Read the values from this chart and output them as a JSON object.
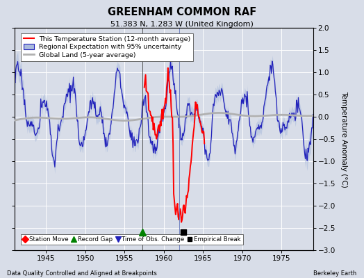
{
  "title": "GREENHAM COMMON RAF",
  "subtitle": "51.383 N, 1.283 W (United Kingdom)",
  "ylabel": "Temperature Anomaly (°C)",
  "xlabel_footer": "Data Quality Controlled and Aligned at Breakpoints",
  "footer_right": "Berkeley Earth",
  "year_start": 1941,
  "year_end": 1979,
  "ylim": [
    -3,
    2
  ],
  "yticks": [
    -3,
    -2.5,
    -2,
    -1.5,
    -1,
    -0.5,
    0,
    0.5,
    1,
    1.5,
    2
  ],
  "xticks": [
    1945,
    1950,
    1955,
    1960,
    1965,
    1970,
    1975
  ],
  "bg_color": "#d8dde8",
  "plot_bg_color": "#d8dde8",
  "grid_color": "#ffffff",
  "legend_entries": [
    "This Temperature Station (12-month average)",
    "Regional Expectation with 95% uncertainty",
    "Global Land (5-year average)"
  ],
  "record_gap_x": 1957.3,
  "time_obs_change_x": 1962.0,
  "empirical_break_x": 1962.5,
  "record_gap_y": -2.6,
  "empirical_break_y": -2.6,
  "time_obs_change_y": -2.6
}
